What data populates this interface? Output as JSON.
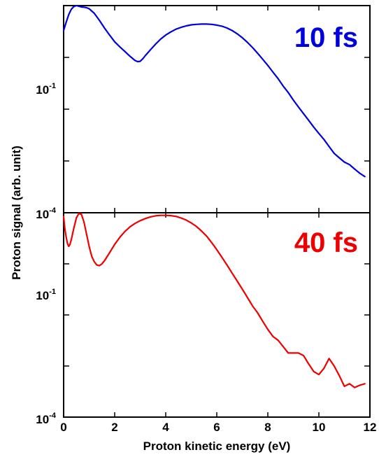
{
  "chart_data": [
    {
      "type": "line",
      "panel_label": "10 fs",
      "color": "#0000dd",
      "xlim": [
        0,
        12
      ],
      "ylim": [
        0.0001,
        1
      ],
      "log_y": true,
      "yticks_labeled": [
        {
          "mantissa": "10",
          "exponent": "-1",
          "value": 0.1
        }
      ],
      "x": [
        0,
        0.1,
        0.2,
        0.3,
        0.4,
        0.5,
        0.6,
        0.7,
        0.8,
        0.9,
        1.0,
        1.2,
        1.4,
        1.6,
        1.8,
        2.0,
        2.2,
        2.4,
        2.6,
        2.8,
        2.9,
        3.0,
        3.1,
        3.2,
        3.4,
        3.6,
        3.8,
        4.0,
        4.2,
        4.4,
        4.6,
        4.8,
        5.0,
        5.2,
        5.4,
        5.6,
        5.8,
        6.0,
        6.2,
        6.4,
        6.6,
        6.8,
        7.0,
        7.2,
        7.4,
        7.6,
        7.8,
        8.0,
        8.2,
        8.4,
        8.6,
        8.8,
        9.0,
        9.2,
        9.4,
        9.6,
        9.8,
        10.0,
        10.2,
        10.4,
        10.6,
        10.8,
        11.0,
        11.2,
        11.4,
        11.6,
        11.8
      ],
      "y": [
        0.33,
        0.48,
        0.67,
        0.85,
        0.96,
        1.0,
        0.97,
        0.94,
        0.93,
        0.91,
        0.87,
        0.71,
        0.52,
        0.37,
        0.27,
        0.2,
        0.16,
        0.13,
        0.105,
        0.087,
        0.083,
        0.084,
        0.094,
        0.108,
        0.14,
        0.18,
        0.225,
        0.27,
        0.31,
        0.35,
        0.38,
        0.405,
        0.425,
        0.435,
        0.44,
        0.44,
        0.435,
        0.42,
        0.4,
        0.37,
        0.33,
        0.285,
        0.24,
        0.195,
        0.155,
        0.12,
        0.092,
        0.07,
        0.052,
        0.039,
        0.028,
        0.021,
        0.015,
        0.011,
        0.0082,
        0.0061,
        0.0045,
        0.0034,
        0.0026,
        0.0019,
        0.0014,
        0.00115,
        0.00095,
        0.00085,
        0.0007,
        0.00058,
        0.0005
      ]
    },
    {
      "type": "line",
      "panel_label": "40 fs",
      "color": "#ee0000",
      "xlim": [
        0,
        12
      ],
      "ylim": [
        0.0001,
        1
      ],
      "log_y": true,
      "xticks": [
        0,
        2,
        4,
        6,
        8,
        10,
        12
      ],
      "yticks_labeled": [
        {
          "mantissa": "10",
          "exponent": "-4",
          "value": 0.0001
        },
        {
          "mantissa": "10",
          "exponent": "-1",
          "value": 0.1
        }
      ],
      "x": [
        0,
        0.05,
        0.1,
        0.15,
        0.2,
        0.25,
        0.3,
        0.4,
        0.5,
        0.6,
        0.7,
        0.8,
        0.9,
        1.0,
        1.1,
        1.2,
        1.3,
        1.4,
        1.5,
        1.6,
        1.8,
        2.0,
        2.2,
        2.4,
        2.6,
        2.8,
        3.0,
        3.2,
        3.4,
        3.6,
        3.8,
        4.0,
        4.2,
        4.4,
        4.6,
        4.8,
        5.0,
        5.2,
        5.4,
        5.6,
        5.8,
        6.0,
        6.2,
        6.4,
        6.6,
        6.8,
        7.0,
        7.2,
        7.4,
        7.6,
        7.8,
        8.0,
        8.2,
        8.4,
        8.6,
        8.8,
        9.0,
        9.2,
        9.4,
        9.6,
        9.8,
        10.0,
        10.2,
        10.4,
        10.6,
        10.8,
        11.0,
        11.2,
        11.4,
        11.6,
        11.8
      ],
      "y": [
        0.85,
        0.48,
        0.33,
        0.25,
        0.22,
        0.24,
        0.3,
        0.5,
        0.8,
        0.97,
        0.93,
        0.65,
        0.38,
        0.22,
        0.14,
        0.11,
        0.095,
        0.092,
        0.1,
        0.115,
        0.165,
        0.24,
        0.33,
        0.43,
        0.53,
        0.62,
        0.7,
        0.77,
        0.83,
        0.87,
        0.89,
        0.89,
        0.88,
        0.85,
        0.79,
        0.72,
        0.63,
        0.54,
        0.44,
        0.35,
        0.26,
        0.19,
        0.135,
        0.095,
        0.066,
        0.046,
        0.032,
        0.022,
        0.015,
        0.011,
        0.0075,
        0.0052,
        0.0038,
        0.0032,
        0.0024,
        0.0018,
        0.0018,
        0.0018,
        0.0016,
        0.0011,
        0.00078,
        0.00068,
        0.0009,
        0.0014,
        0.001,
        0.00065,
        0.0004,
        0.00045,
        0.00038,
        0.00042,
        0.00045
      ]
    }
  ],
  "xlabel": "Proton kinetic energy (eV)",
  "ylabel": "Proton signal (arb. unit)"
}
